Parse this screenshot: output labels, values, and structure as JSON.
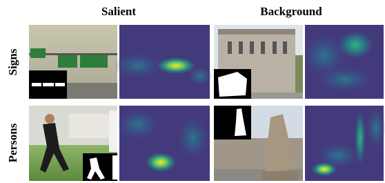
{
  "columns": [
    "Salient",
    "Background"
  ],
  "rows": [
    "Signs",
    "Persons"
  ]
}
